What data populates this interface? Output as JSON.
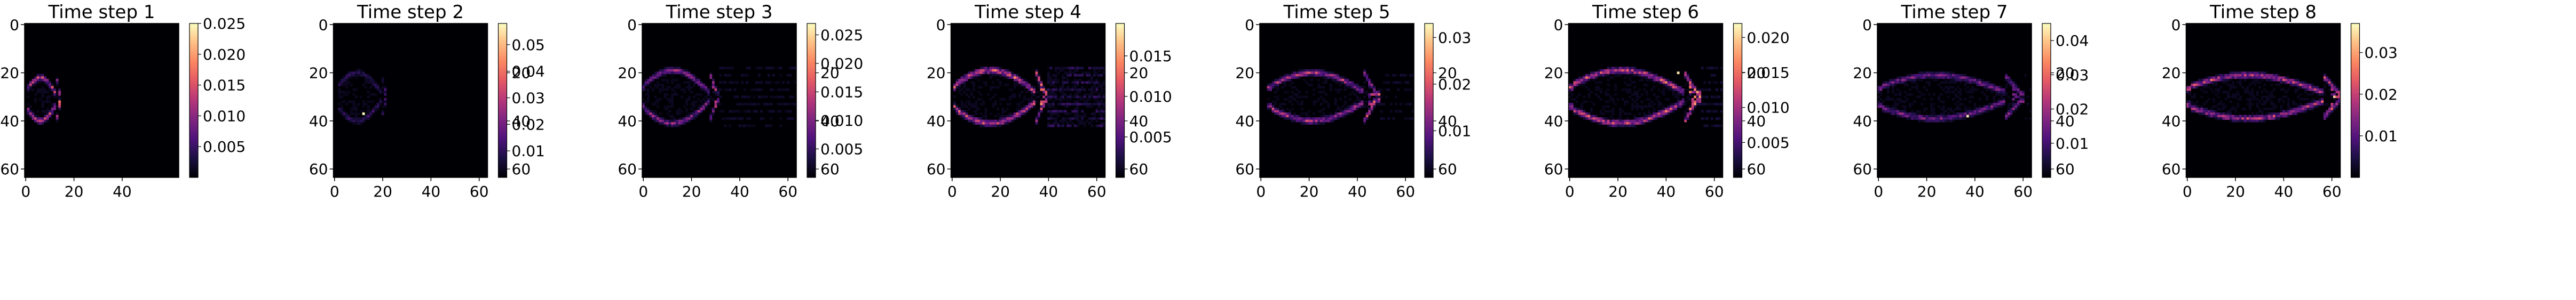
{
  "chart_data": [
    {
      "type": "heatmap",
      "title": "Time step 1",
      "xticks": [
        "0",
        "20",
        "40"
      ],
      "yticks": [
        "0",
        "20",
        "40",
        "60"
      ],
      "xlim": [
        0,
        63
      ],
      "ylim": [
        63,
        0
      ],
      "colorbar": {
        "ticks": [
          "0.005",
          "0.010",
          "0.015",
          "0.020",
          "0.025"
        ]
      },
      "colormap": "magma",
      "pattern": "small blob near left edge; brightest outline x≈2–15, y≈22–40",
      "max_value": 0.025
    },
    {
      "type": "heatmap",
      "title": "Time step 2",
      "xticks": [
        "0",
        "20",
        "40",
        "60"
      ],
      "yticks": [
        "0",
        "20",
        "40",
        "60"
      ],
      "xlim": [
        0,
        63
      ],
      "ylim": [
        63,
        0
      ],
      "colorbar": {
        "ticks": [
          "20",
          "40",
          "60",
          "0.01",
          "0.02",
          "0.03",
          "0.04",
          "0.05"
        ]
      },
      "colormap": "magma",
      "pattern": "faint ring x≈2–20, y≈20–40 with single bright pixel near (12,37)",
      "max_value": 0.058
    },
    {
      "type": "heatmap",
      "title": "Time step 3",
      "xticks": [
        "0",
        "20",
        "40",
        "60"
      ],
      "yticks": [
        "0",
        "20",
        "40",
        "60"
      ],
      "xlim": [
        0,
        63
      ],
      "ylim": [
        63,
        0
      ],
      "colorbar": {
        "ticks": [
          "20",
          "40",
          "60",
          "0.005",
          "0.010",
          "0.015",
          "0.020",
          "0.025"
        ]
      },
      "colormap": "magma",
      "pattern": "outline of expanding plume x≈0–30, y≈20–40",
      "max_value": 0.027
    },
    {
      "type": "heatmap",
      "title": "Time step 4",
      "xticks": [
        "0",
        "20",
        "40",
        "60"
      ],
      "yticks": [
        "0",
        "20",
        "40",
        "60"
      ],
      "xlim": [
        0,
        63
      ],
      "ylim": [
        63,
        0
      ],
      "colorbar": {
        "ticks": [
          "20",
          "40",
          "60",
          "0.005",
          "0.010",
          "0.015"
        ]
      },
      "colormap": "magma",
      "pattern": "bright plume outline x≈2–38, y≈20–41 with wake streaks to right edge",
      "max_value": 0.019
    },
    {
      "type": "heatmap",
      "title": "Time step 5",
      "xticks": [
        "0",
        "20",
        "40",
        "60"
      ],
      "yticks": [
        "0",
        "20",
        "40",
        "60"
      ],
      "xlim": [
        0,
        63
      ],
      "ylim": [
        63,
        0
      ],
      "colorbar": {
        "ticks": [
          "20",
          "40",
          "60",
          "0.01",
          "0.02",
          "0.03"
        ]
      },
      "colormap": "magma",
      "pattern": "plume outline x≈5–47, y≈20–40",
      "max_value": 0.033
    },
    {
      "type": "heatmap",
      "title": "Time step 6",
      "xticks": [
        "0",
        "20",
        "40",
        "60"
      ],
      "yticks": [
        "0",
        "20",
        "40",
        "60"
      ],
      "xlim": [
        0,
        63
      ],
      "ylim": [
        63,
        0
      ],
      "colorbar": {
        "ticks": [
          "20",
          "40",
          "60",
          "0.005",
          "0.010",
          "0.015",
          "0.020"
        ]
      },
      "colormap": "magma",
      "pattern": "plume outline x≈2–52, y≈18–41",
      "max_value": 0.022
    },
    {
      "type": "heatmap",
      "title": "Time step 7",
      "xticks": [
        "0",
        "20",
        "40",
        "60"
      ],
      "yticks": [
        "0",
        "20",
        "40",
        "60"
      ],
      "xlim": [
        0,
        63
      ],
      "ylim": [
        63,
        0
      ],
      "colorbar": {
        "ticks": [
          "20",
          "40",
          "60",
          "0.01",
          "0.02",
          "0.03",
          "0.04"
        ]
      },
      "colormap": "magma",
      "pattern": "elongated outline x≈2–58, y≈22–38 with bright pixel near (37,38)",
      "max_value": 0.045
    },
    {
      "type": "heatmap",
      "title": "Time step 8",
      "xticks": [
        "0",
        "20",
        "40",
        "60"
      ],
      "yticks": [
        "0",
        "20",
        "40",
        "60"
      ],
      "xlim": [
        0,
        63
      ],
      "ylim": [
        63,
        0
      ],
      "colorbar": {
        "ticks": [
          "0.01",
          "0.02",
          "0.03"
        ]
      },
      "colormap": "magma",
      "pattern": "elongated outline x≈2–62, y≈22–38, brightest on right tip",
      "max_value": 0.037
    }
  ]
}
